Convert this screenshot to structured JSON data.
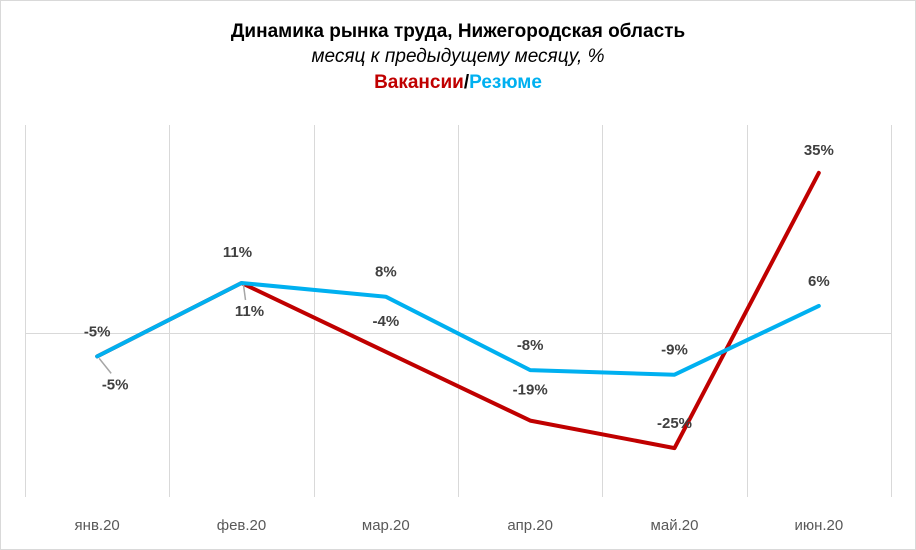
{
  "chart_data": {
    "type": "line",
    "title": "Динамика рынка труда, Нижегородская область",
    "subtitle": "месяц к предыдущему месяцу, %",
    "legend_entries": [
      "Вакансии",
      "/",
      "Резюме"
    ],
    "categories": [
      "янв.20",
      "фев.20",
      "мар.20",
      "апр.20",
      "май.20",
      "июн.20"
    ],
    "series": [
      {
        "name": "Вакансии",
        "color": "#c00000",
        "values": [
          -5,
          11,
          -4,
          -19,
          -25,
          35
        ],
        "labels": [
          "-5%",
          "11%",
          "-4%",
          "-19%",
          "-25%",
          "35%"
        ]
      },
      {
        "name": "Резюме",
        "color": "#00b0f0",
        "values": [
          -5,
          11,
          8,
          -8,
          -9,
          6
        ],
        "labels": [
          "-5%",
          "11%",
          "8%",
          "-8%",
          "-9%",
          "6%"
        ]
      }
    ],
    "ylim": [
      -30,
      40
    ],
    "grid": "vertical",
    "xlabel": "",
    "ylabel": ""
  }
}
